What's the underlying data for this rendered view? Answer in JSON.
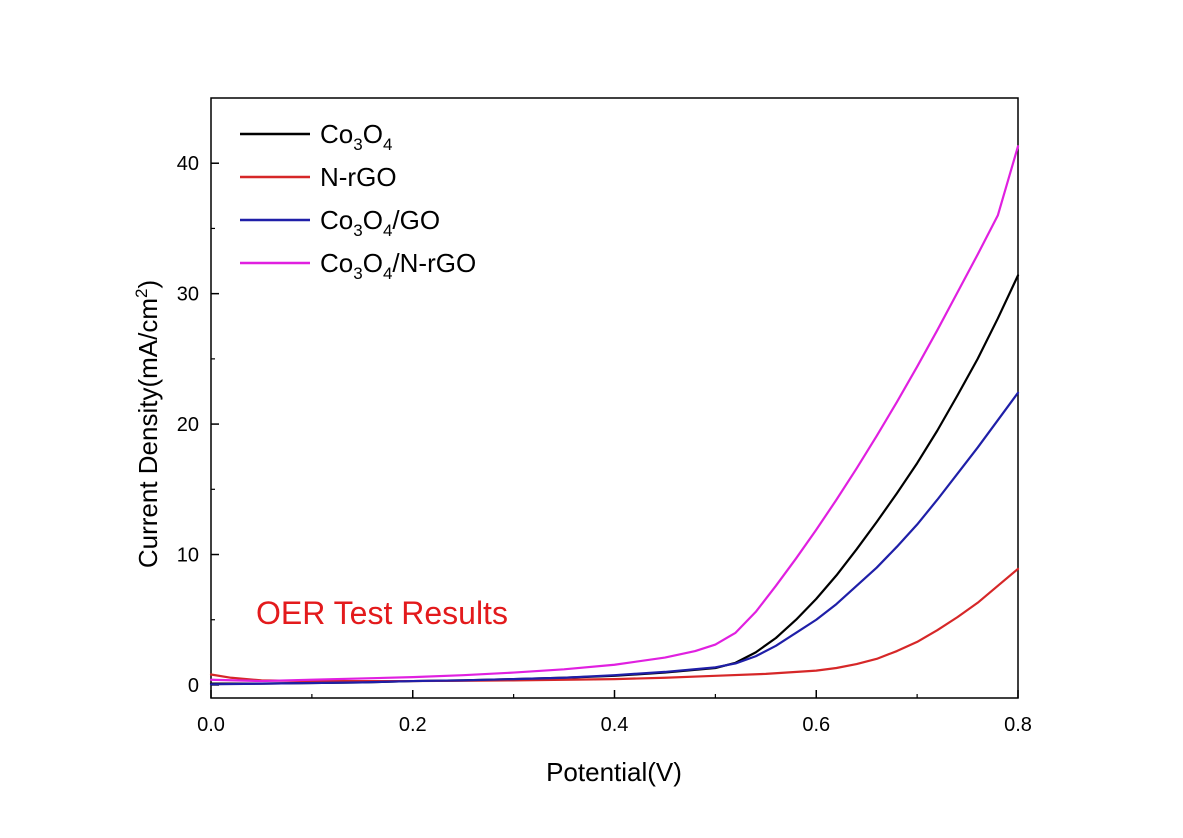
{
  "chart_data": {
    "type": "line",
    "title": "",
    "xlabel": "Potential(V)",
    "ylabel": "Current Density(mA/cm²)",
    "ylabel_parts": {
      "main": "Current Density(mA/cm",
      "sup": "2",
      "tail": ")"
    },
    "xlim": [
      0.0,
      0.8
    ],
    "ylim": [
      -1,
      45
    ],
    "x_ticks": [
      "0.0",
      "0.2",
      "0.4",
      "0.6",
      "0.8"
    ],
    "y_ticks": [
      "0",
      "10",
      "20",
      "30",
      "40"
    ],
    "grid": false,
    "legend_position": "top-left",
    "annotation": {
      "text": "OER Test Results",
      "color": "#e31a1c"
    },
    "series": [
      {
        "name": "Co3O4",
        "name_parts": [
          [
            "Co",
            ""
          ],
          [
            "3",
            "sub"
          ],
          [
            "O",
            ""
          ],
          [
            "4",
            "sub"
          ]
        ],
        "color": "#000000",
        "x": [
          0.0,
          0.05,
          0.1,
          0.15,
          0.2,
          0.25,
          0.3,
          0.35,
          0.4,
          0.45,
          0.5,
          0.52,
          0.54,
          0.56,
          0.58,
          0.6,
          0.62,
          0.64,
          0.66,
          0.68,
          0.7,
          0.72,
          0.74,
          0.76,
          0.78,
          0.8
        ],
        "y": [
          0.1,
          0.1,
          0.15,
          0.2,
          0.3,
          0.35,
          0.45,
          0.55,
          0.7,
          0.95,
          1.3,
          1.7,
          2.5,
          3.6,
          5.0,
          6.6,
          8.4,
          10.4,
          12.5,
          14.7,
          17.0,
          19.5,
          22.2,
          25.0,
          28.1,
          31.4
        ]
      },
      {
        "name": "N-rGO",
        "name_parts": [
          [
            "N-rGO",
            ""
          ]
        ],
        "color": "#d62728",
        "x": [
          0.0,
          0.02,
          0.05,
          0.1,
          0.15,
          0.2,
          0.25,
          0.3,
          0.35,
          0.4,
          0.45,
          0.5,
          0.55,
          0.6,
          0.62,
          0.64,
          0.66,
          0.68,
          0.7,
          0.72,
          0.74,
          0.76,
          0.78,
          0.8
        ],
        "y": [
          0.8,
          0.55,
          0.35,
          0.3,
          0.3,
          0.3,
          0.32,
          0.35,
          0.4,
          0.45,
          0.55,
          0.7,
          0.85,
          1.1,
          1.3,
          1.6,
          2.0,
          2.6,
          3.3,
          4.2,
          5.2,
          6.3,
          7.6,
          8.9
        ]
      },
      {
        "name": "Co3O4/GO",
        "name_parts": [
          [
            "Co",
            ""
          ],
          [
            "3",
            "sub"
          ],
          [
            "O",
            ""
          ],
          [
            "4",
            "sub"
          ],
          [
            "/GO",
            ""
          ]
        ],
        "color": "#1f1fa8",
        "x": [
          0.0,
          0.05,
          0.1,
          0.15,
          0.2,
          0.25,
          0.3,
          0.35,
          0.4,
          0.45,
          0.5,
          0.52,
          0.54,
          0.56,
          0.58,
          0.6,
          0.62,
          0.64,
          0.66,
          0.68,
          0.7,
          0.72,
          0.74,
          0.76,
          0.78,
          0.8
        ],
        "y": [
          0.05,
          0.1,
          0.15,
          0.2,
          0.3,
          0.35,
          0.45,
          0.55,
          0.75,
          1.0,
          1.35,
          1.65,
          2.2,
          3.0,
          4.0,
          5.0,
          6.2,
          7.6,
          9.0,
          10.6,
          12.3,
          14.2,
          16.2,
          18.2,
          20.3,
          22.4
        ]
      },
      {
        "name": "Co3O4/N-rGO",
        "name_parts": [
          [
            "Co",
            ""
          ],
          [
            "3",
            "sub"
          ],
          [
            "O",
            ""
          ],
          [
            "4",
            "sub"
          ],
          [
            "/N-rGO",
            ""
          ]
        ],
        "color": "#e020e0",
        "x": [
          0.0,
          0.05,
          0.1,
          0.15,
          0.2,
          0.25,
          0.3,
          0.35,
          0.4,
          0.45,
          0.48,
          0.5,
          0.52,
          0.54,
          0.56,
          0.58,
          0.6,
          0.62,
          0.64,
          0.66,
          0.68,
          0.7,
          0.72,
          0.74,
          0.76,
          0.78,
          0.8
        ],
        "y": [
          0.4,
          0.3,
          0.4,
          0.5,
          0.6,
          0.75,
          0.95,
          1.2,
          1.55,
          2.1,
          2.6,
          3.1,
          4.0,
          5.6,
          7.6,
          9.7,
          11.9,
          14.2,
          16.6,
          19.1,
          21.7,
          24.4,
          27.2,
          30.1,
          33.0,
          36.0,
          41.3
        ]
      }
    ]
  }
}
